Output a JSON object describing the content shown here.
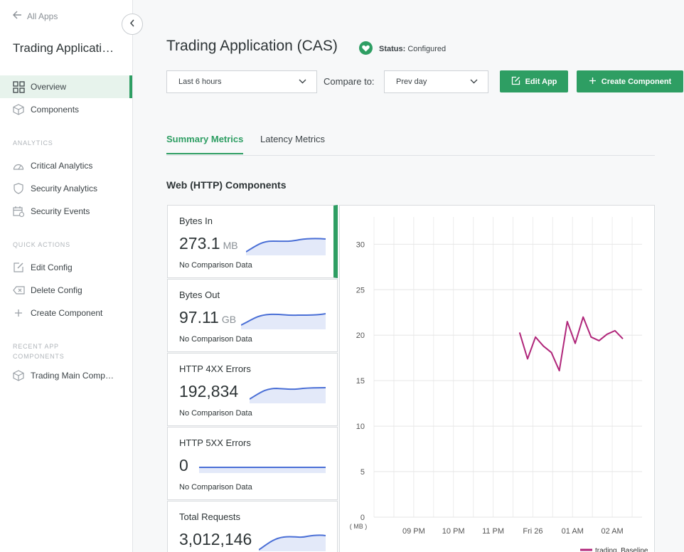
{
  "sidebar": {
    "back_label": "All Apps",
    "app_title": "Trading Application (CAS)",
    "items": [
      {
        "label": "Overview",
        "icon": "grid-icon"
      },
      {
        "label": "Components",
        "icon": "cube-icon"
      }
    ],
    "analytics_label": "ANALYTICS",
    "analytics_items": [
      {
        "label": "Critical Analytics",
        "icon": "gauge-icon"
      },
      {
        "label": "Security Analytics",
        "icon": "shield-icon"
      },
      {
        "label": "Security Events",
        "icon": "calendar-icon"
      }
    ],
    "quick_actions_label": "QUICK ACTIONS",
    "quick_actions": [
      {
        "label": "Edit Config",
        "icon": "edit-icon"
      },
      {
        "label": "Delete Config",
        "icon": "delete-icon"
      },
      {
        "label": "Create Component",
        "icon": "plus-icon"
      }
    ],
    "recent_label": "RECENT APP COMPONENTS",
    "recent_items": [
      {
        "label": "Trading Main Component",
        "icon": "cube-icon"
      }
    ]
  },
  "header": {
    "title": "Trading Application (CAS)",
    "status_label": "Status:",
    "status_value": "Configured"
  },
  "toolbar": {
    "time_range": "Last 6 hours",
    "compare_label": "Compare to:",
    "compare_value": "Prev day",
    "edit_app": "Edit App",
    "create_component": "Create Component"
  },
  "tabs": [
    {
      "label": "Summary Metrics",
      "active": true
    },
    {
      "label": "Latency Metrics",
      "active": false
    }
  ],
  "section_title": "Web (HTTP) Components",
  "metrics": [
    {
      "name": "Bytes In",
      "value": "273.1",
      "unit": "MB",
      "comparison": "No Comparison Data",
      "active": true
    },
    {
      "name": "Bytes Out",
      "value": "97.11",
      "unit": "GB",
      "comparison": "No Comparison Data",
      "active": false
    },
    {
      "name": "HTTP 4XX Errors",
      "value": "192,834",
      "unit": "",
      "comparison": "No Comparison Data",
      "active": false
    },
    {
      "name": "HTTP 5XX Errors",
      "value": "0",
      "unit": "",
      "comparison": "No Comparison Data",
      "active": false
    },
    {
      "name": "Total Requests",
      "value": "3,012,146",
      "unit": "",
      "comparison": "",
      "active": false
    }
  ],
  "colors": {
    "accent": "#2e9e63",
    "sparkline": "#4a6fd6",
    "sparkline_fill": "#e3e9f9",
    "series": "#b0267a"
  },
  "chart_data": {
    "type": "line",
    "ylabel": "( MB )",
    "ylim": [
      0,
      33
    ],
    "yticks": [
      0,
      5,
      10,
      15,
      20,
      25,
      30
    ],
    "xticks": [
      "09 PM",
      "10 PM",
      "11 PM",
      "Fri 26",
      "01 AM",
      "02 AM"
    ],
    "series": [
      {
        "name": "trading. Baseline",
        "x": [
          "23:40",
          "23:52",
          "00:04",
          "00:16",
          "00:28",
          "00:40",
          "00:52",
          "01:04",
          "01:16",
          "01:28",
          "01:40",
          "01:52",
          "02:04",
          "02:16"
        ],
        "values": [
          20.3,
          17.4,
          19.8,
          18.8,
          18.1,
          16.1,
          21.5,
          19.1,
          22.0,
          19.8,
          19.4,
          20.1,
          20.5,
          19.6
        ]
      }
    ],
    "grid": true,
    "legend": "bottom-right"
  }
}
